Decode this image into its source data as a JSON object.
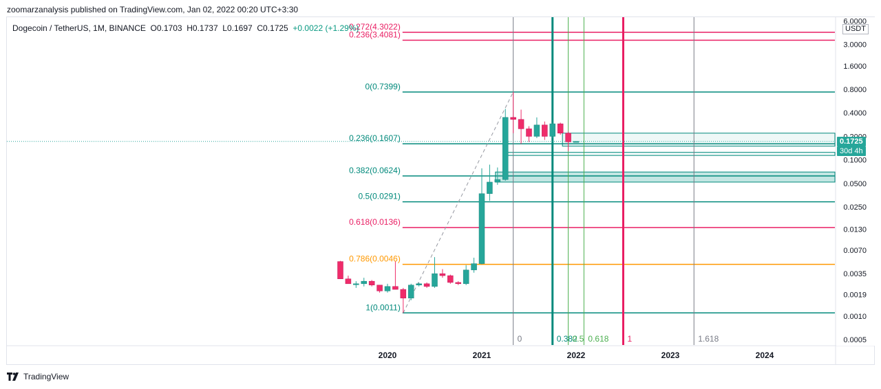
{
  "header": {
    "published": "zoomarzanalysis published on TradingView.com, Jan 02, 2022 00:20 UTC+3:30"
  },
  "symbol": {
    "name": "Dogecoin / TetherUS, 1M, BINANCE",
    "open": "O0.1703",
    "high": "H0.1737",
    "low": "L0.1697",
    "close": "C0.1725",
    "change": "+0.0022 (+1.29%)"
  },
  "price_axis": {
    "unit": "USDT",
    "ticks": [
      "6.0000",
      "3.0000",
      "1.6000",
      "0.8000",
      "0.4000",
      "0.2000",
      "0.1000",
      "0.0500",
      "0.0250",
      "0.0130",
      "0.0070",
      "0.0035",
      "0.0019",
      "0.0010",
      "0.0005"
    ],
    "current_price": "0.1725",
    "countdown": "30d 4h"
  },
  "footer": {
    "brand": "TradingView"
  },
  "colors": {
    "up": "#26a69a",
    "down": "#ef2c6a",
    "fib_teal": "#00897b",
    "fib_red": "#e91e63",
    "fib_orange": "#ff9800",
    "fib_time_green": "#4caf50",
    "grey": "#787b86"
  },
  "chart_data": {
    "type": "candlestick",
    "x_axis": {
      "ticks": [
        "2020",
        "2021",
        "2022",
        "2023",
        "2024"
      ]
    },
    "y_axis": {
      "scale": "log",
      "range": [
        0.0005,
        6.0
      ]
    },
    "candles": [
      {
        "t": "2019-07",
        "o": 0.005,
        "h": 0.0051,
        "l": 0.003,
        "c": 0.003
      },
      {
        "t": "2019-08",
        "o": 0.003,
        "h": 0.0033,
        "l": 0.0026,
        "c": 0.0026
      },
      {
        "t": "2019-09",
        "o": 0.0026,
        "h": 0.0028,
        "l": 0.0023,
        "c": 0.0026
      },
      {
        "t": "2019-10",
        "o": 0.0026,
        "h": 0.0031,
        "l": 0.0024,
        "c": 0.0028
      },
      {
        "t": "2019-11",
        "o": 0.0028,
        "h": 0.0029,
        "l": 0.0024,
        "c": 0.0025
      },
      {
        "t": "2019-12",
        "o": 0.0025,
        "h": 0.0025,
        "l": 0.002,
        "c": 0.0021
      },
      {
        "t": "2020-01",
        "o": 0.0021,
        "h": 0.0026,
        "l": 0.002,
        "c": 0.0024
      },
      {
        "t": "2020-02",
        "o": 0.0024,
        "h": 0.005,
        "l": 0.0022,
        "c": 0.0022
      },
      {
        "t": "2020-03",
        "o": 0.0022,
        "h": 0.0023,
        "l": 0.0011,
        "c": 0.0017
      },
      {
        "t": "2020-04",
        "o": 0.0017,
        "h": 0.0026,
        "l": 0.0016,
        "c": 0.0025
      },
      {
        "t": "2020-05",
        "o": 0.0025,
        "h": 0.0027,
        "l": 0.0024,
        "c": 0.0026
      },
      {
        "t": "2020-06",
        "o": 0.0026,
        "h": 0.0027,
        "l": 0.0023,
        "c": 0.0024
      },
      {
        "t": "2020-07",
        "o": 0.0024,
        "h": 0.0057,
        "l": 0.0023,
        "c": 0.0035
      },
      {
        "t": "2020-08",
        "o": 0.0035,
        "h": 0.004,
        "l": 0.0031,
        "c": 0.0033
      },
      {
        "t": "2020-09",
        "o": 0.0033,
        "h": 0.0034,
        "l": 0.0026,
        "c": 0.0027
      },
      {
        "t": "2020-10",
        "o": 0.0027,
        "h": 0.0028,
        "l": 0.0025,
        "c": 0.0026
      },
      {
        "t": "2020-11",
        "o": 0.0026,
        "h": 0.0045,
        "l": 0.0025,
        "c": 0.0039
      },
      {
        "t": "2020-12",
        "o": 0.0039,
        "h": 0.0056,
        "l": 0.0036,
        "c": 0.0047
      },
      {
        "t": "2021-01",
        "o": 0.0047,
        "h": 0.078,
        "l": 0.0046,
        "c": 0.037
      },
      {
        "t": "2021-02",
        "o": 0.037,
        "h": 0.087,
        "l": 0.03,
        "c": 0.052
      },
      {
        "t": "2021-03",
        "o": 0.052,
        "h": 0.08,
        "l": 0.048,
        "c": 0.056
      },
      {
        "t": "2021-04",
        "o": 0.056,
        "h": 0.45,
        "l": 0.054,
        "c": 0.35
      },
      {
        "t": "2021-05",
        "o": 0.35,
        "h": 0.7399,
        "l": 0.22,
        "c": 0.33
      },
      {
        "t": "2021-06",
        "o": 0.33,
        "h": 0.44,
        "l": 0.16,
        "c": 0.25
      },
      {
        "t": "2021-07",
        "o": 0.25,
        "h": 0.27,
        "l": 0.17,
        "c": 0.2
      },
      {
        "t": "2021-08",
        "o": 0.2,
        "h": 0.35,
        "l": 0.19,
        "c": 0.28
      },
      {
        "t": "2021-09",
        "o": 0.28,
        "h": 0.31,
        "l": 0.18,
        "c": 0.2
      },
      {
        "t": "2021-10",
        "o": 0.2,
        "h": 0.3,
        "l": 0.19,
        "c": 0.29
      },
      {
        "t": "2021-11",
        "o": 0.29,
        "h": 0.3,
        "l": 0.21,
        "c": 0.22
      },
      {
        "t": "2021-12",
        "o": 0.22,
        "h": 0.23,
        "l": 0.13,
        "c": 0.17
      },
      {
        "t": "2022-01",
        "o": 0.1703,
        "h": 0.1737,
        "l": 0.1697,
        "c": 0.1725
      }
    ],
    "fib_retracement": [
      {
        "label": "0.272(4.3022)",
        "price": 4.3022,
        "color": "#e91e63"
      },
      {
        "label": "0.236(3.4081)",
        "price": 3.4081,
        "color": "#e91e63"
      },
      {
        "label": "0(0.7399)",
        "price": 0.7399,
        "color": "#00897b"
      },
      {
        "label": "0.236(0.1607)",
        "price": 0.1607,
        "color": "#00897b"
      },
      {
        "label": "0.382(0.0624)",
        "price": 0.0624,
        "color": "#00897b"
      },
      {
        "label": "0.5(0.0291)",
        "price": 0.0291,
        "color": "#00897b"
      },
      {
        "label": "0.618(0.0136)",
        "price": 0.0136,
        "color": "#e91e63"
      },
      {
        "label": "0.786(0.0046)",
        "price": 0.0046,
        "color": "#ff9800"
      },
      {
        "label": "1(0.0011)",
        "price": 0.0011,
        "color": "#00897b"
      }
    ],
    "fib_time_zones": [
      {
        "label": "0",
        "t": "2021-05",
        "color": "#787b86"
      },
      {
        "label": "0.382",
        "t": "2021-10",
        "color": "#00897b"
      },
      {
        "label": "0.5",
        "t": "2021-12",
        "color": "#4caf50"
      },
      {
        "label": "0.618",
        "t": "2022-02",
        "color": "#4caf50"
      },
      {
        "label": "1",
        "t": "2022-07",
        "color": "#e91e63"
      },
      {
        "label": "1.618",
        "t": "2023-04",
        "color": "#787b86"
      }
    ],
    "zones": [
      {
        "from": 0.052,
        "to": 0.07
      },
      {
        "from": 0.114,
        "to": 0.125
      },
      {
        "from": 0.15,
        "to": 0.22
      }
    ]
  }
}
